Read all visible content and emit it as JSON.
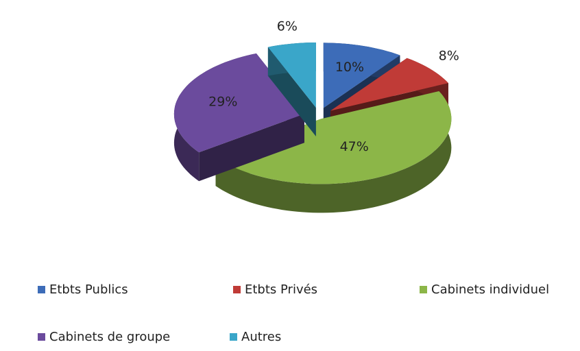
{
  "chart_data": {
    "type": "pie3d",
    "categories": [
      "Etbts Publics",
      "Etbts Privés",
      "Cabinets individuel",
      "Cabinets de groupe",
      "Autres"
    ],
    "values": [
      10,
      8,
      47,
      29,
      6
    ],
    "value_labels": [
      "10%",
      "8%",
      "47%",
      "29%",
      "6%"
    ],
    "colors": [
      "#3d6cb8",
      "#c03b37",
      "#8cb648",
      "#6b4b9d",
      "#3aa6c9"
    ],
    "legend": "bottom"
  }
}
